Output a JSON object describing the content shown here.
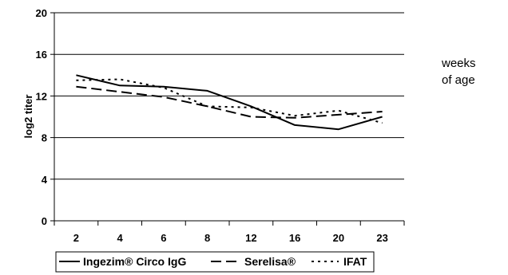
{
  "chart_data": {
    "type": "line",
    "categories": [
      "2",
      "4",
      "6",
      "8",
      "12",
      "16",
      "20",
      "23"
    ],
    "ylabel": "log2 titer",
    "xlabel": "weeks of age",
    "xlabel_lines": [
      "weeks",
      "of age"
    ],
    "ylim": [
      0,
      20
    ],
    "yticks": [
      0,
      4,
      8,
      12,
      16,
      20
    ],
    "grid": "horizontal",
    "legend_position": "bottom",
    "series": [
      {
        "name": "Ingezim® Circo IgG",
        "line_style": "solid",
        "values": [
          14.0,
          13.0,
          12.9,
          12.5,
          11.0,
          9.2,
          8.8,
          10.0
        ]
      },
      {
        "name": "Serelisa®",
        "line_style": "dashed",
        "values": [
          12.9,
          12.4,
          11.9,
          11.0,
          10.0,
          9.9,
          10.2,
          10.5
        ]
      },
      {
        "name": "IFAT",
        "line_style": "dotted",
        "values": [
          13.5,
          13.6,
          12.8,
          11.0,
          10.9,
          10.1,
          10.6,
          9.4
        ]
      }
    ]
  }
}
